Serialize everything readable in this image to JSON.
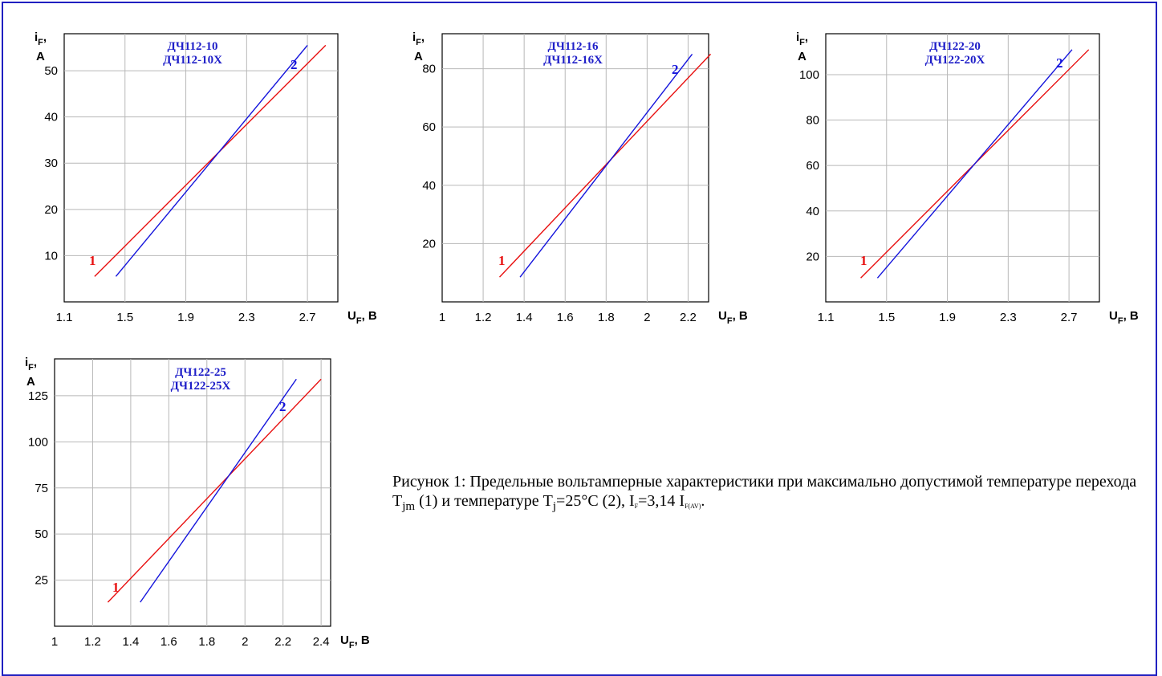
{
  "colors": {
    "series1": "#e81010",
    "series2": "#1414dc",
    "grid": "#b8b8b8",
    "model": "#1e1ec8",
    "frame": "#2020c0"
  },
  "charts": [
    {
      "id": "dch112-10",
      "ylabel": {
        "main": "i",
        "sub": "F",
        "sep": ",",
        "unit": "A"
      },
      "xlabel": {
        "main": "U",
        "sub": "F",
        "rest": ", B"
      },
      "model_lines": [
        "ДЧ112-10",
        "ДЧ112-10Х"
      ],
      "x_ticks": [
        "1.1",
        "1.5",
        "1.9",
        "2.3",
        "2.7"
      ],
      "y_ticks": [
        "10",
        "20",
        "30",
        "40",
        "50"
      ],
      "series_labels": [
        "1",
        "2"
      ]
    },
    {
      "id": "dch112-16",
      "ylabel": {
        "main": "i",
        "sub": "F",
        "sep": ",",
        "unit": "A"
      },
      "xlabel": {
        "main": "U",
        "sub": "F",
        "rest": ", B"
      },
      "model_lines": [
        "ДЧ112-16",
        "ДЧ112-16Х"
      ],
      "x_ticks": [
        "1",
        "1.2",
        "1.4",
        "1.6",
        "1.8",
        "2",
        "2.2"
      ],
      "y_ticks": [
        "20",
        "40",
        "60",
        "80"
      ],
      "series_labels": [
        "1",
        "2"
      ]
    },
    {
      "id": "dch122-20",
      "ylabel": {
        "main": "i",
        "sub": "F",
        "sep": ",",
        "unit": "A"
      },
      "xlabel": {
        "main": "U",
        "sub": "F",
        "rest": ", B"
      },
      "model_lines": [
        "ДЧ122-20",
        "ДЧ122-20Х"
      ],
      "x_ticks": [
        "1.1",
        "1.5",
        "1.9",
        "2.3",
        "2.7"
      ],
      "y_ticks": [
        "20",
        "40",
        "60",
        "80",
        "100"
      ],
      "series_labels": [
        "1",
        "2"
      ]
    },
    {
      "id": "dch122-25",
      "ylabel": {
        "main": "i",
        "sub": "F",
        "sep": ",",
        "unit": "A"
      },
      "xlabel": {
        "main": "U",
        "sub": "F",
        "rest": ", B"
      },
      "model_lines": [
        "ДЧ122-25",
        "ДЧ122-25Х"
      ],
      "x_ticks": [
        "1",
        "1.2",
        "1.4",
        "1.6",
        "1.8",
        "2",
        "2.2",
        "2.4"
      ],
      "y_ticks": [
        "25",
        "50",
        "75",
        "100",
        "125"
      ],
      "series_labels": [
        "1",
        "2"
      ]
    }
  ],
  "caption": {
    "part1": "Рисунок 1: Предельные вольтамперные характеристики при максимально допустимой температуре перехода T",
    "sub1": "jm",
    "part2": " (1) и температуре T",
    "sub2": "j",
    "part3": "=25°C (2), I",
    "sub3": "F",
    "part4": "=3,14 I",
    "sub4": "F(AV)",
    "part5": "."
  },
  "chart_data": [
    {
      "type": "line",
      "title": "ДЧ112-10 / ДЧ112-10Х",
      "xlabel": "UF, B",
      "ylabel": "iF, A",
      "xlim": [
        1.1,
        2.9
      ],
      "ylim": [
        0,
        58
      ],
      "x_ticks": [
        1.1,
        1.5,
        1.9,
        2.3,
        2.7
      ],
      "y_ticks": [
        10,
        20,
        30,
        40,
        50
      ],
      "grid": true,
      "series": [
        {
          "name": "1",
          "x": [
            1.3,
            2.82
          ],
          "y": [
            5.5,
            55.5
          ]
        },
        {
          "name": "2",
          "x": [
            1.44,
            2.7
          ],
          "y": [
            5.5,
            55.5
          ]
        }
      ]
    },
    {
      "type": "line",
      "title": "ДЧ112-16 / ДЧ112-16Х",
      "xlabel": "UF, B",
      "ylabel": "iF, A",
      "xlim": [
        1.0,
        2.3
      ],
      "ylim": [
        0,
        92
      ],
      "x_ticks": [
        1,
        1.2,
        1.4,
        1.6,
        1.8,
        2,
        2.2
      ],
      "y_ticks": [
        20,
        40,
        60,
        80
      ],
      "grid": true,
      "series": [
        {
          "name": "1",
          "x": [
            1.28,
            2.31
          ],
          "y": [
            8.5,
            85
          ]
        },
        {
          "name": "2",
          "x": [
            1.38,
            2.22
          ],
          "y": [
            8.5,
            85
          ]
        }
      ]
    },
    {
      "type": "line",
      "title": "ДЧ122-20 / ДЧ122-20Х",
      "xlabel": "UF, B",
      "ylabel": "iF, A",
      "xlim": [
        1.1,
        2.9
      ],
      "ylim": [
        0,
        118
      ],
      "x_ticks": [
        1.1,
        1.5,
        1.9,
        2.3,
        2.7
      ],
      "y_ticks": [
        20,
        40,
        60,
        80,
        100
      ],
      "grid": true,
      "series": [
        {
          "name": "1",
          "x": [
            1.33,
            2.83
          ],
          "y": [
            10.5,
            111
          ]
        },
        {
          "name": "2",
          "x": [
            1.44,
            2.72
          ],
          "y": [
            10.5,
            111
          ]
        }
      ]
    },
    {
      "type": "line",
      "title": "ДЧ122-25 / ДЧ122-25Х",
      "xlabel": "UF, B",
      "ylabel": "iF, A",
      "xlim": [
        1.0,
        2.45
      ],
      "ylim": [
        0,
        145
      ],
      "x_ticks": [
        1,
        1.2,
        1.4,
        1.6,
        1.8,
        2,
        2.2,
        2.4
      ],
      "y_ticks": [
        25,
        50,
        75,
        100,
        125
      ],
      "grid": true,
      "series": [
        {
          "name": "1",
          "x": [
            1.28,
            2.4
          ],
          "y": [
            13,
            134
          ]
        },
        {
          "name": "2",
          "x": [
            1.45,
            2.27
          ],
          "y": [
            13,
            134
          ]
        }
      ]
    }
  ]
}
